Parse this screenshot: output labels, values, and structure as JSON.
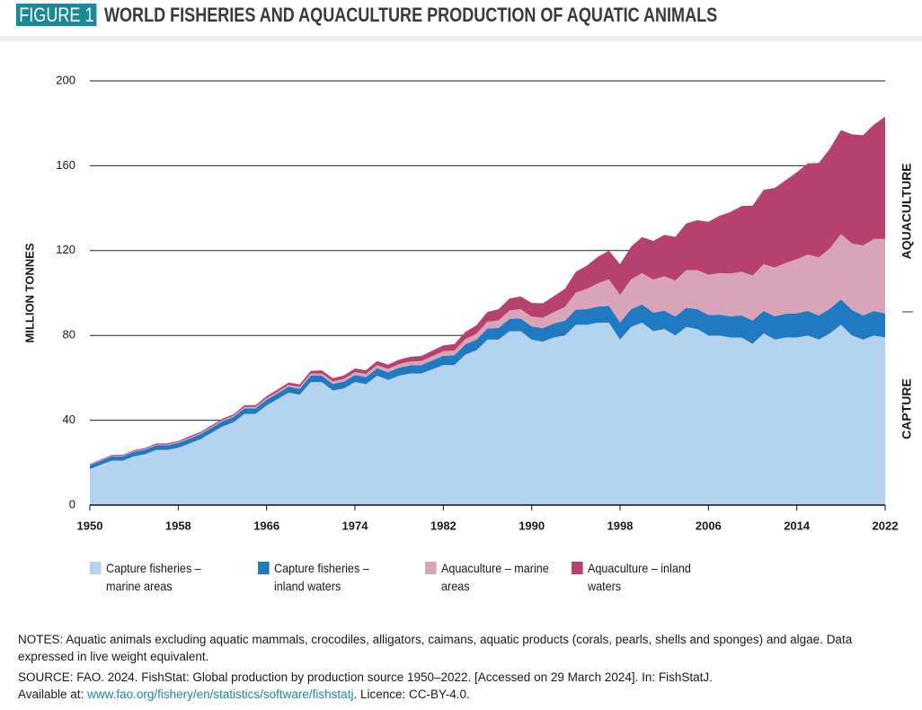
{
  "figure_label": "FIGURE 1",
  "chart_data": {
    "type": "area",
    "stacked": true,
    "title": "WORLD FISHERIES AND AQUACULTURE PRODUCTION OF AQUATIC ANIMALS",
    "y_label": "MILLION TONNES",
    "annotations": [
      "AQUACULTURE",
      "CAPTURE"
    ],
    "x": [
      1950,
      1951,
      1952,
      1953,
      1954,
      1955,
      1956,
      1957,
      1958,
      1959,
      1960,
      1961,
      1962,
      1963,
      1964,
      1965,
      1966,
      1967,
      1968,
      1969,
      1970,
      1971,
      1972,
      1973,
      1974,
      1975,
      1976,
      1977,
      1978,
      1979,
      1980,
      1981,
      1982,
      1983,
      1984,
      1985,
      1986,
      1987,
      1988,
      1989,
      1990,
      1991,
      1992,
      1993,
      1994,
      1995,
      1996,
      1997,
      1998,
      1999,
      2000,
      2001,
      2002,
      2003,
      2004,
      2005,
      2006,
      2007,
      2008,
      2009,
      2010,
      2011,
      2012,
      2013,
      2014,
      2015,
      2016,
      2017,
      2018,
      2019,
      2020,
      2021,
      2022
    ],
    "xlim": [
      1950,
      2022
    ],
    "xticks": [
      1950,
      1958,
      1966,
      1974,
      1982,
      1990,
      1998,
      2006,
      2014,
      2022
    ],
    "ylim": [
      0,
      200
    ],
    "yticks": [
      0,
      40,
      80,
      120,
      160,
      200
    ],
    "grid": true,
    "series": [
      {
        "name": "Capture fisheries – marine areas",
        "color": "#b3d3ef",
        "values": [
          17,
          19,
          21,
          21,
          23,
          24,
          26,
          26,
          27,
          29,
          31,
          34,
          37,
          39,
          43,
          43,
          47,
          50,
          53,
          52,
          58,
          58,
          54,
          55,
          58,
          57,
          61,
          59,
          61,
          62,
          62,
          64,
          66,
          66,
          71,
          73,
          78,
          78,
          82,
          82,
          78,
          77,
          79,
          80,
          85,
          85,
          86,
          86,
          78,
          84,
          86,
          82,
          83,
          80,
          84,
          83,
          80,
          80,
          79,
          79,
          76,
          81,
          78,
          79,
          79,
          80,
          78,
          81,
          85,
          80,
          78,
          80,
          79
        ]
      },
      {
        "name": "Capture fisheries – inland waters",
        "color": "#1f7ac2",
        "values": [
          1.8,
          1.9,
          2.0,
          2.0,
          2.1,
          2.1,
          2.2,
          2.2,
          2.3,
          2.3,
          2.4,
          2.4,
          2.5,
          2.5,
          2.6,
          2.6,
          2.7,
          2.7,
          2.8,
          2.8,
          3.0,
          3.0,
          3.1,
          3.2,
          3.3,
          3.4,
          3.5,
          3.6,
          3.8,
          3.9,
          4.0,
          4.2,
          4.4,
          4.6,
          4.8,
          5.0,
          5.3,
          5.5,
          5.8,
          6.0,
          6.2,
          6.4,
          6.6,
          6.9,
          7.2,
          7.4,
          7.6,
          7.9,
          8.1,
          8.4,
          8.6,
          8.7,
          8.7,
          8.9,
          9.0,
          9.4,
          9.6,
          9.8,
          10.0,
          10.4,
          11.0,
          10.6,
          11.0,
          11.2,
          11.4,
          11.5,
          11.4,
          11.6,
          12.0,
          12.0,
          11.4,
          11.5,
          11.3
        ]
      },
      {
        "name": "Aquaculture – marine areas",
        "color": "#d9a3b8",
        "values": [
          0.3,
          0.3,
          0.3,
          0.3,
          0.4,
          0.4,
          0.4,
          0.4,
          0.4,
          0.5,
          0.5,
          0.5,
          0.6,
          0.6,
          0.7,
          0.7,
          0.8,
          0.8,
          0.9,
          0.9,
          1.0,
          1.1,
          1.2,
          1.3,
          1.4,
          1.4,
          1.5,
          1.6,
          1.7,
          1.8,
          1.9,
          2.0,
          2.1,
          2.3,
          2.5,
          2.8,
          3.2,
          3.6,
          4.0,
          4.4,
          4.6,
          4.9,
          5.4,
          6.5,
          8.0,
          9.5,
          11.0,
          12.5,
          13.0,
          14.0,
          14.8,
          15.6,
          16.2,
          17.0,
          17.8,
          18.4,
          19.0,
          19.6,
          20.2,
          20.6,
          21.2,
          22.0,
          23.0,
          24.0,
          25.5,
          26.6,
          27.4,
          28.5,
          30.8,
          31.3,
          33.0,
          34.0,
          35.2
        ]
      },
      {
        "name": "Aquaculture – inland waters",
        "color": "#b6416f",
        "values": [
          0.3,
          0.3,
          0.4,
          0.4,
          0.4,
          0.4,
          0.5,
          0.5,
          0.5,
          0.6,
          0.6,
          0.6,
          0.7,
          0.7,
          0.8,
          0.8,
          0.9,
          1.0,
          1.1,
          1.2,
          1.3,
          1.4,
          1.5,
          1.6,
          1.7,
          1.8,
          1.9,
          2.0,
          2.1,
          2.2,
          2.4,
          2.6,
          2.8,
          3.0,
          3.4,
          4.0,
          4.6,
          5.2,
          5.6,
          6.0,
          6.5,
          6.8,
          7.5,
          8.5,
          9.8,
          11.0,
          12.5,
          13.5,
          14.5,
          15.5,
          17.0,
          18.2,
          19.5,
          20.6,
          22.0,
          23.5,
          25.0,
          27.0,
          29.0,
          31.0,
          33.0,
          35.0,
          37.5,
          39.0,
          41.0,
          43.0,
          44.5,
          47.0,
          49.0,
          51.5,
          52.0,
          54.0,
          57.6
        ]
      }
    ]
  },
  "notes": "NOTES: Aquatic animals excluding aquatic mammals, crocodiles, alligators, caimans, aquatic products (corals, pearls, shells and sponges) and algae. Data expressed in live weight equivalent.",
  "source": {
    "text": "SOURCE: FAO. 2024. FishStat: Global production by production source 1950–2022. [Accessed on 29 March 2024]. In: FishStatJ.",
    "prefix": "Available at:",
    "link": "www.fao.org/fishery/en/statistics/software/fishstatj",
    "suffix": ". Licence: CC-BY-4.0."
  }
}
